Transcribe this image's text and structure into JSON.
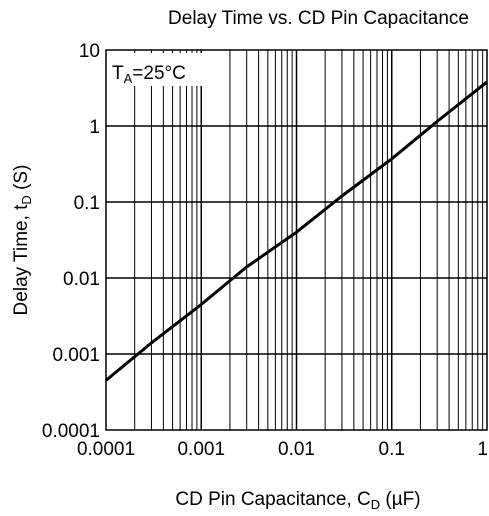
{
  "chart_data": {
    "type": "line",
    "title": "Delay Time vs. CD Pin Capacitance",
    "xlabel": {
      "main": "CD Pin Capacitance, C",
      "sub": "D",
      "unit": " (µF)"
    },
    "ylabel": {
      "main": "Delay Time, t",
      "sub": "D",
      "unit": " (S)"
    },
    "x_scale": "log",
    "y_scale": "log",
    "xlim": [
      0.0001,
      1
    ],
    "ylim": [
      0.0001,
      10
    ],
    "x_tick_labels": [
      "0.0001",
      "0.001",
      "0.01",
      "0.1",
      "1"
    ],
    "y_tick_labels": [
      "0.0001",
      "0.001",
      "0.01",
      "0.1",
      "1",
      "10"
    ],
    "grid": true,
    "annotation": {
      "main": "T",
      "sub": "A",
      "rest": "=25°C",
      "position": "top-left"
    },
    "series": [
      {
        "x": [
          0.0001,
          0.0003,
          0.001,
          0.003,
          0.01,
          0.03,
          0.1,
          0.3,
          1
        ],
        "y": [
          0.00045,
          0.0014,
          0.0045,
          0.014,
          0.04,
          0.12,
          0.37,
          1.15,
          3.8
        ]
      }
    ]
  }
}
